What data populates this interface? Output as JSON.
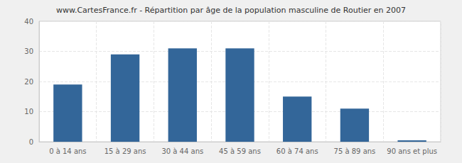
{
  "chart_data": {
    "type": "bar",
    "title": "www.CartesFrance.fr - Répartition par âge de la population masculine de Routier en 2007",
    "categories": [
      "0 à 14 ans",
      "15 à 29 ans",
      "30 à 44 ans",
      "45 à 59 ans",
      "60 à 74 ans",
      "75 à 89 ans",
      "90 ans et plus"
    ],
    "values": [
      19,
      29,
      31,
      31,
      15,
      11,
      0
    ],
    "color": "#336699",
    "ylim": [
      0,
      40
    ],
    "yticks": [
      0,
      10,
      20,
      30,
      40
    ],
    "grid": true
  }
}
